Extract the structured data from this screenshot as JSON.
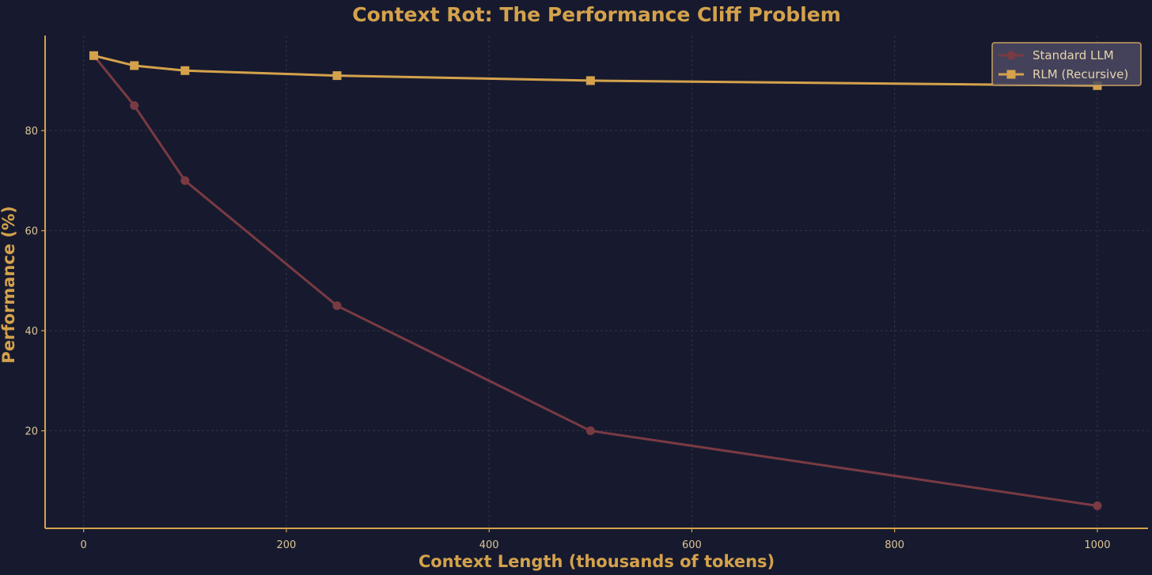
{
  "colors": {
    "background": "#171a2e",
    "axis": "#d4a24c",
    "tick_text": "#dcc596",
    "title": "#d4a24c",
    "grid": "#3a3a4a",
    "legend_bg": "#4b4a62",
    "legend_border": "#c9a063",
    "legend_text": "#e6d3ae"
  },
  "chart_data": {
    "type": "line",
    "title": "Context Rot: The Performance Cliff Problem",
    "xlabel": "Context Length (thousands of tokens)",
    "ylabel": "Performance (%)",
    "xlim": [
      -38,
      1050
    ],
    "ylim": [
      0.5,
      99
    ],
    "xticks": [
      0,
      200,
      400,
      600,
      800,
      1000
    ],
    "yticks": [
      20,
      40,
      60,
      80
    ],
    "grid": true,
    "legend_position": "top-right",
    "series": [
      {
        "name": "Standard LLM",
        "marker": "circle",
        "color": "#7a3a43",
        "x": [
          10,
          50,
          100,
          250,
          500,
          1000
        ],
        "y": [
          95,
          85,
          70,
          45,
          20,
          5
        ]
      },
      {
        "name": "RLM (Recursive)",
        "marker": "square",
        "color": "#d4a24c",
        "x": [
          10,
          50,
          100,
          250,
          500,
          1000
        ],
        "y": [
          95,
          93,
          92,
          91,
          90,
          89
        ]
      }
    ]
  }
}
